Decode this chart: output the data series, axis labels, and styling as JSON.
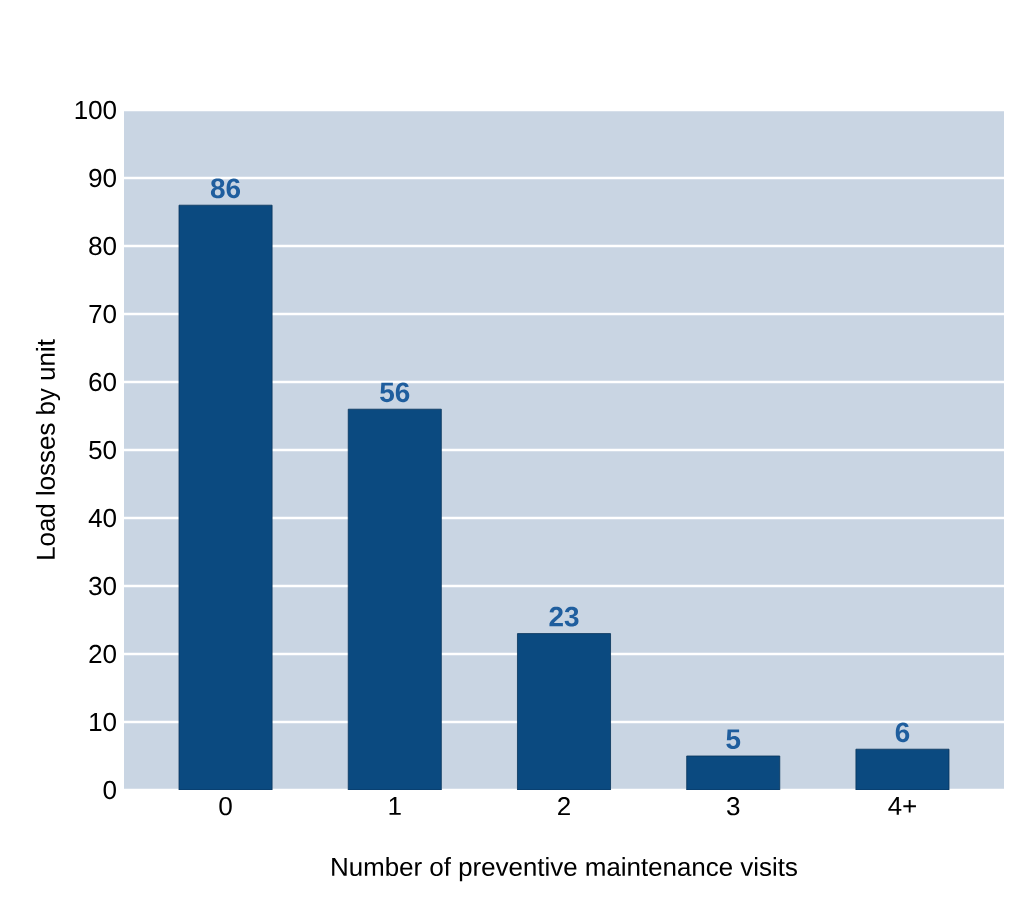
{
  "chart_data": {
    "type": "bar",
    "xlabel": "Number of preventive maintenance visits",
    "ylabel": "Load losses by unit",
    "categories": [
      "0",
      "1",
      "2",
      "3",
      "4+"
    ],
    "values": [
      86,
      56,
      23,
      5,
      6
    ],
    "color": "#0b4a80",
    "ylim": [
      0,
      100
    ],
    "yticks": [
      0,
      10,
      20,
      30,
      40,
      50,
      60,
      70,
      80,
      90,
      100
    ],
    "grid": "y",
    "data_labels": true
  }
}
